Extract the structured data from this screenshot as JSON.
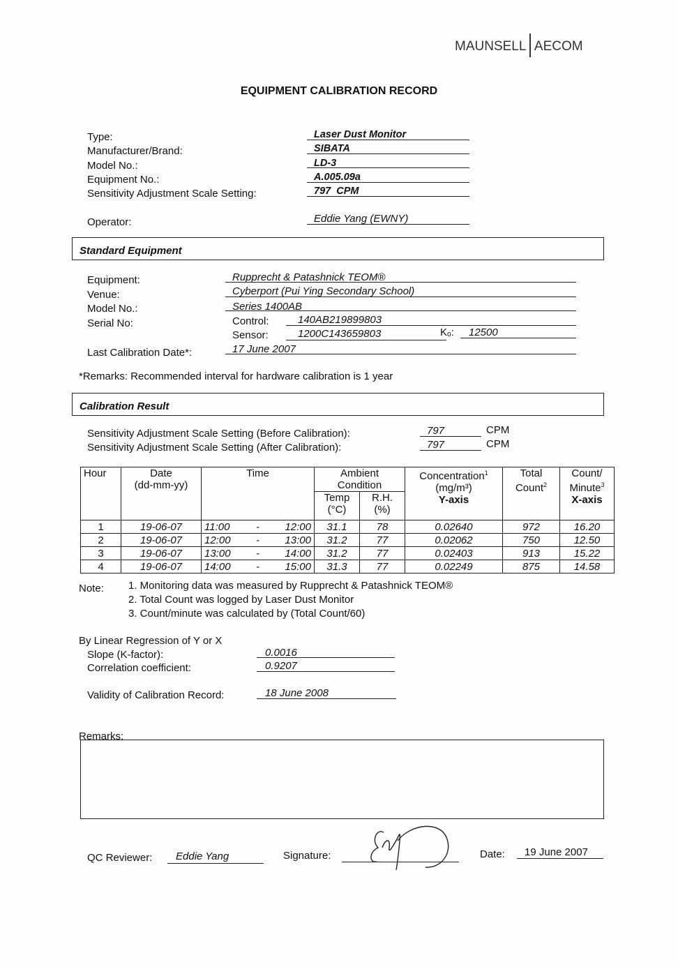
{
  "logo": {
    "left": "MAUNSELL",
    "right": "AECOM"
  },
  "title": "EQUIPMENT CALIBRATION RECORD",
  "equipment_info": [
    {
      "label": "Type:",
      "value": "Laser Dust Monitor"
    },
    {
      "label": "Manufacturer/Brand:",
      "value": "SIBATA"
    },
    {
      "label": "Model No.:",
      "value": "LD-3"
    },
    {
      "label": "Equipment No.:",
      "value": "A.005.09a"
    },
    {
      "label": "Sensitivity Adjustment Scale Setting:",
      "value": "797  CPM"
    }
  ],
  "operator": {
    "label": "Operator:",
    "value": "Eddie Yang (EWNY)"
  },
  "standard_equipment": {
    "heading": "Standard Equipment",
    "equipment_label": "Equipment:",
    "equipment": "Rupprecht & Patashnick TEOM®",
    "venue_label": "Venue:",
    "venue": "Cyberport (Pui Ying Secondary School)",
    "model_label": "Model No.:",
    "model": "Series 1400AB",
    "serial_label": "Serial No:",
    "control_label": "Control:",
    "control": "140AB219899803",
    "sensor_label": "Sensor:",
    "sensor": "1200C143659803",
    "ko_label": "Kₒ:",
    "ko": "12500",
    "last_cal_label": "Last Calibration Date*:",
    "last_cal": "17 June 2007",
    "remarks": "*Remarks: Recommended interval for hardware calibration is 1 year"
  },
  "calibration_result": {
    "heading": "Calibration Result",
    "before_label": "Sensitivity Adjustment Scale Setting (Before Calibration):",
    "before": "797",
    "before_unit": "CPM",
    "after_label": "Sensitivity Adjustment Scale Setting (After Calibration):",
    "after": "797",
    "after_unit": "CPM"
  },
  "table": {
    "headers": {
      "hour": "Hour",
      "date": "Date",
      "date_fmt": "(dd-mm-yy)",
      "time": "Time",
      "ambient": "Ambient",
      "condition": "Condition",
      "temp": "Temp",
      "temp_unit": "(°C)",
      "rh": "R.H.",
      "rh_unit": "(%)",
      "conc": "Concentration",
      "conc_sup": "1",
      "conc_unit": "(mg/m³)",
      "y_axis": "Y-axis",
      "total": "Total",
      "count": "Count",
      "total_sup": "2",
      "cpm1": "Count/",
      "cpm2": "Minute",
      "cpm_sup": "3",
      "x_axis": "X-axis"
    },
    "rows": [
      {
        "hour": "1",
        "date": "19-06-07",
        "start": "11:00",
        "dash": "-",
        "end": "12:00",
        "temp": "31.1",
        "rh": "78",
        "conc": "0.02640",
        "total": "972",
        "cpm": "16.20"
      },
      {
        "hour": "2",
        "date": "19-06-07",
        "start": "12:00",
        "dash": "-",
        "end": "13:00",
        "temp": "31.2",
        "rh": "77",
        "conc": "0.02062",
        "total": "750",
        "cpm": "12.50"
      },
      {
        "hour": "3",
        "date": "19-06-07",
        "start": "13:00",
        "dash": "-",
        "end": "14:00",
        "temp": "31.2",
        "rh": "77",
        "conc": "0.02403",
        "total": "913",
        "cpm": "15.22"
      },
      {
        "hour": "4",
        "date": "19-06-07",
        "start": "14:00",
        "dash": "-",
        "end": "15:00",
        "temp": "31.3",
        "rh": "77",
        "conc": "0.02249",
        "total": "875",
        "cpm": "14.58"
      }
    ]
  },
  "notes": {
    "label": "Note:",
    "items": [
      "1. Monitoring data was measured by Rupprecht & Patashnick TEOM®",
      "2. Total Count was logged by Laser Dust Monitor",
      "3. Count/minute was calculated by (Total Count/60)"
    ]
  },
  "regression": {
    "heading": "By Linear Regression of Y or X",
    "slope_label": "Slope (K-factor):",
    "slope": "0.0016",
    "corr_label": "Correlation coefficient:",
    "corr": "0.9207",
    "validity_label": "Validity of Calibration Record:",
    "validity": "18 June 2008"
  },
  "remarks_label": "Remarks:",
  "footer": {
    "qc_label": "QC Reviewer:",
    "qc": "Eddie Yang",
    "signature_label": "Signature:",
    "date_label": "Date:",
    "date": "19 June 2007"
  }
}
